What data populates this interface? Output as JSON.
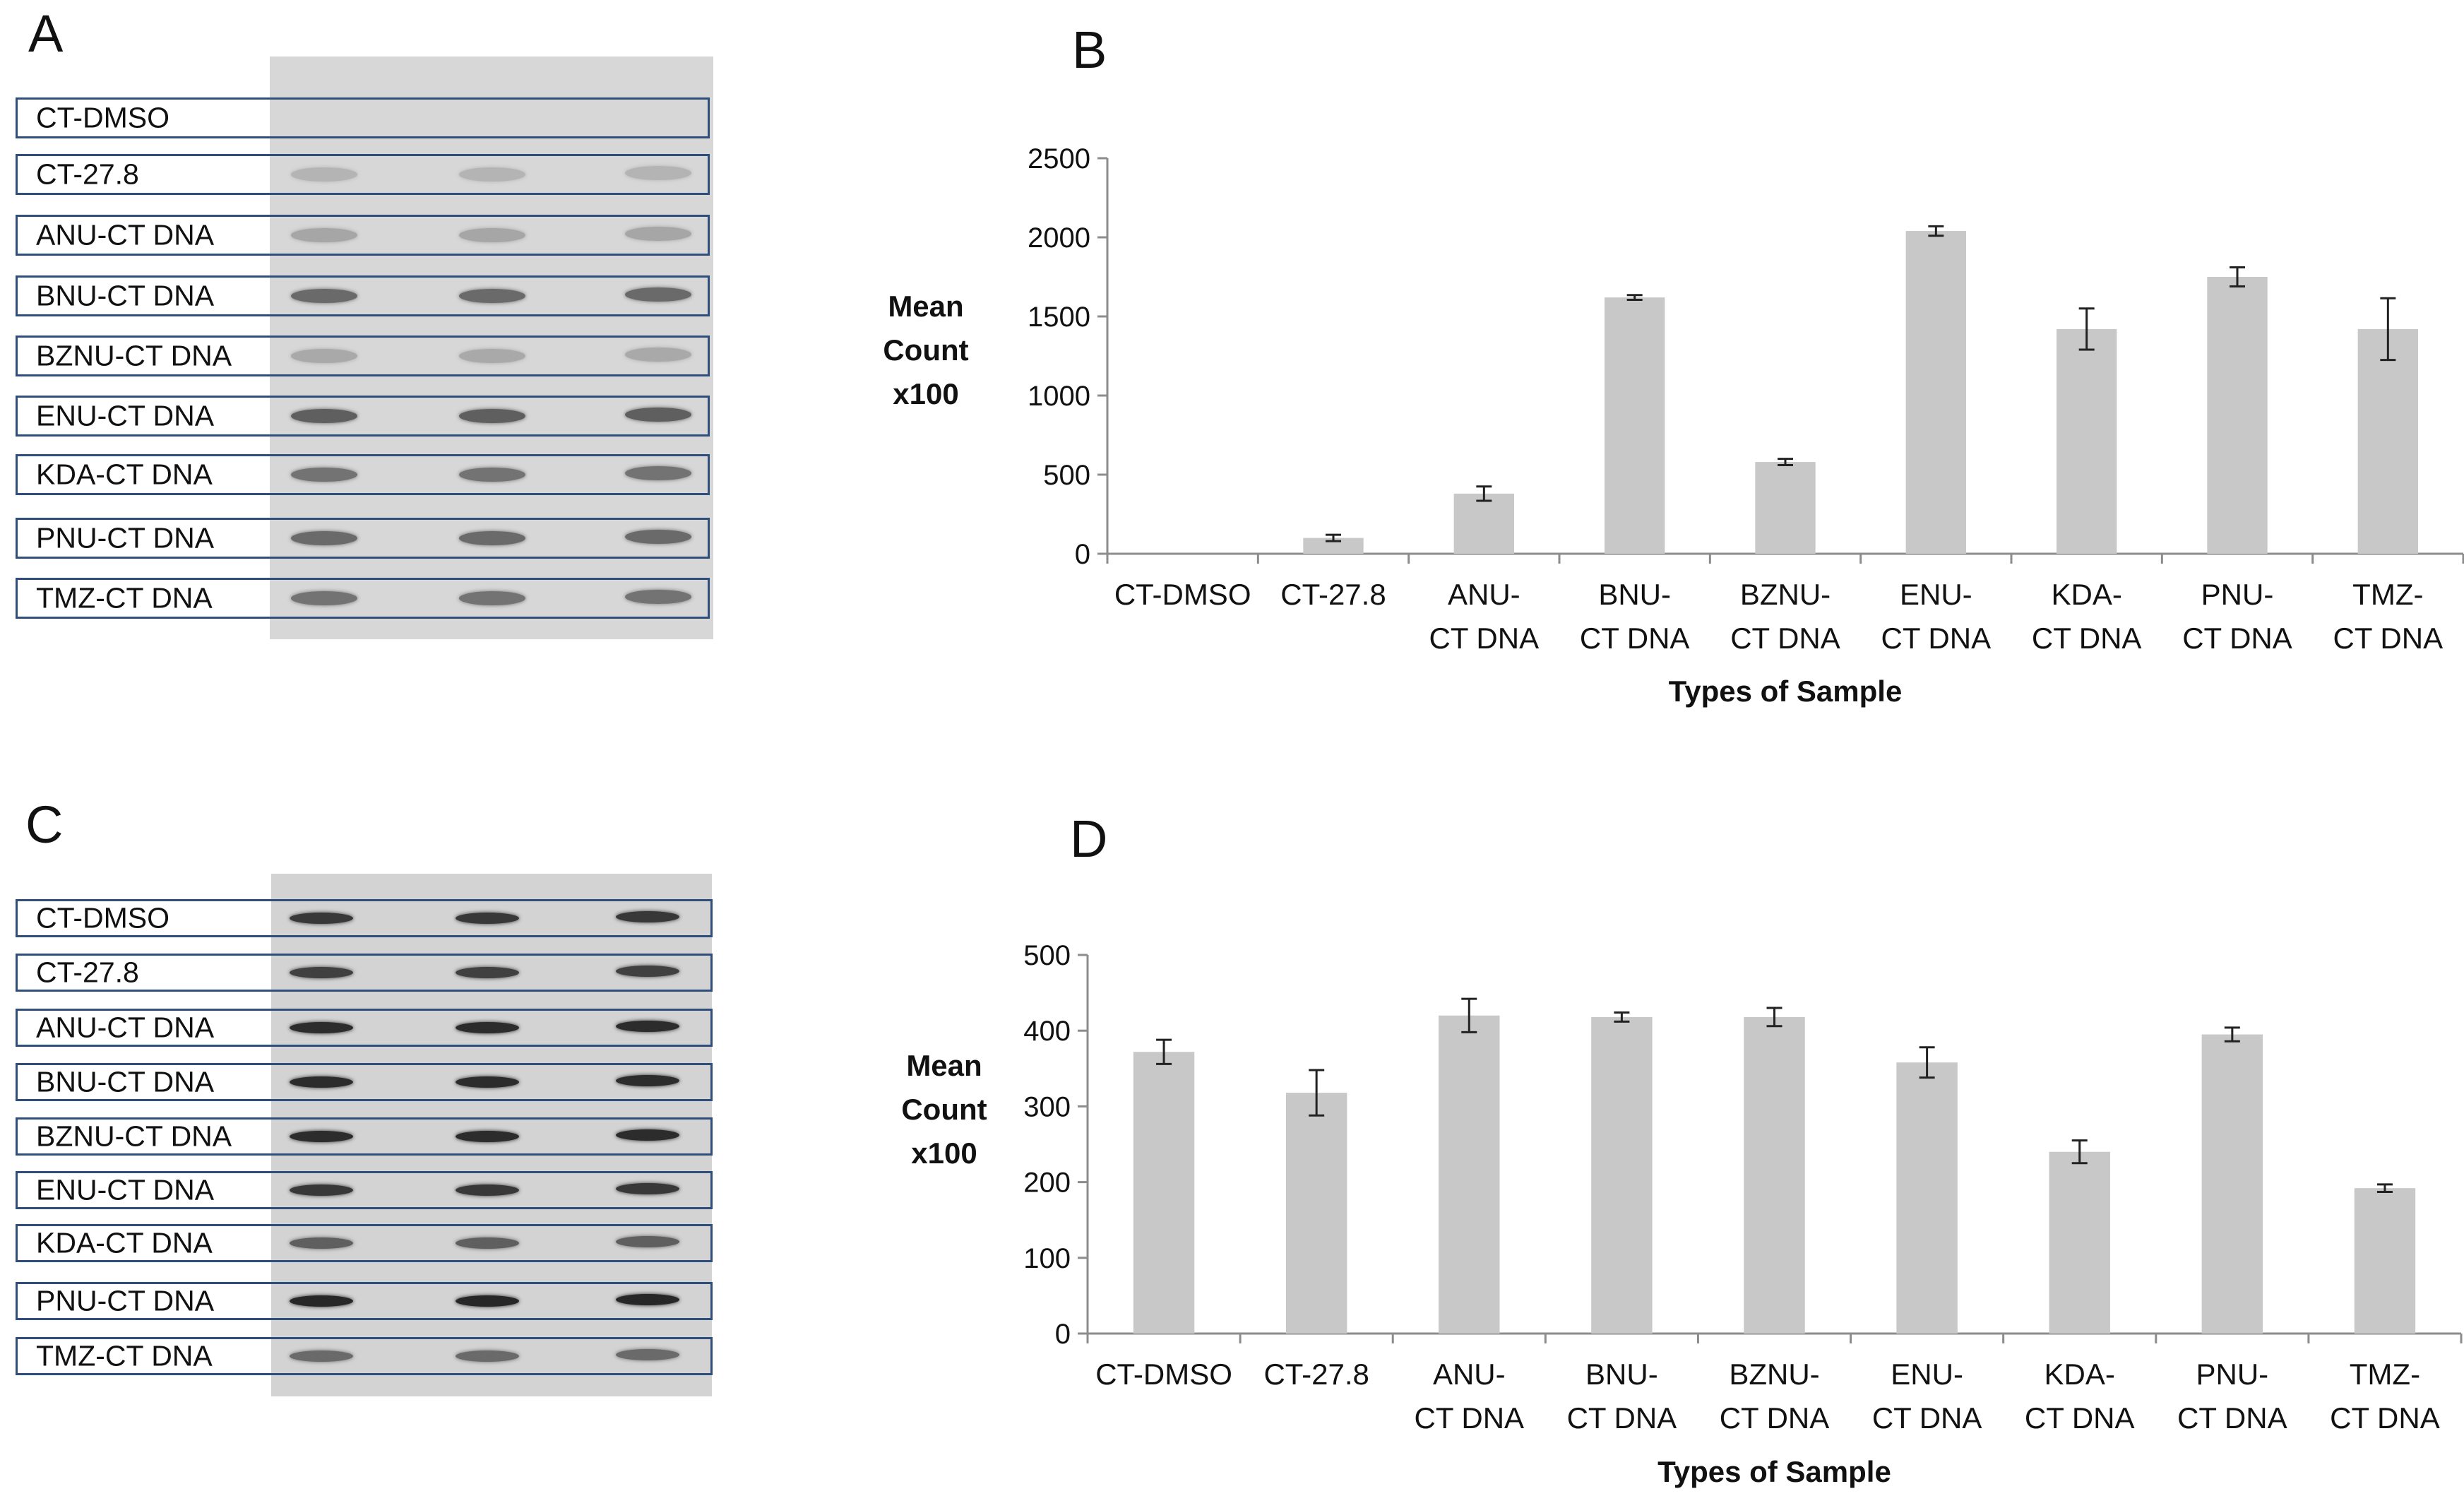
{
  "panels": {
    "a": {
      "letter": "A"
    },
    "b": {
      "letter": "B"
    },
    "c": {
      "letter": "C"
    },
    "d": {
      "letter": "D"
    }
  },
  "blot_a": {
    "lanes": [
      "CT-DMSO",
      "CT-27.8",
      "ANU-CT DNA",
      "BNU-CT DNA",
      "BZNU-CT DNA",
      "ENU-CT DNA",
      "KDA-CT DNA",
      "PNU-CT DNA",
      "TMZ-CT DNA"
    ],
    "band_intensity": [
      0.0,
      0.12,
      0.2,
      0.55,
      0.18,
      0.62,
      0.5,
      0.55,
      0.5
    ]
  },
  "blot_c": {
    "lanes": [
      "CT-DMSO",
      "CT-27.8",
      "ANU-CT DNA",
      "BNU-CT DNA",
      "BZNU-CT DNA",
      "ENU-CT DNA",
      "KDA-CT DNA",
      "PNU-CT DNA",
      "TMZ-CT DNA"
    ],
    "band_intensity": [
      0.85,
      0.8,
      0.92,
      0.92,
      0.92,
      0.85,
      0.62,
      0.95,
      0.55
    ]
  },
  "chart_data": [
    {
      "type": "bar",
      "panel": "B",
      "categories": [
        [
          "CT-DMSO"
        ],
        [
          "CT-27.8"
        ],
        [
          "ANU-",
          "CT DNA"
        ],
        [
          "BNU-",
          "CT DNA"
        ],
        [
          "BZNU-",
          "CT DNA"
        ],
        [
          "ENU-",
          "CT DNA"
        ],
        [
          "KDA-",
          "CT DNA"
        ],
        [
          "PNU-",
          "CT DNA"
        ],
        [
          "TMZ-",
          "CT DNA"
        ]
      ],
      "values": [
        0,
        100,
        380,
        1620,
        580,
        2040,
        1420,
        1750,
        1420
      ],
      "errors": [
        0,
        20,
        45,
        15,
        20,
        30,
        130,
        60,
        195
      ],
      "ylim": [
        0,
        2500
      ],
      "yticks": [
        0,
        500,
        1000,
        1500,
        2000,
        2500
      ],
      "ylabel": [
        "Mean",
        "Count",
        "x100"
      ],
      "xlabel": "Types of Sample",
      "bar_color": "#c8c8c8"
    },
    {
      "type": "bar",
      "panel": "D",
      "categories": [
        [
          "CT-DMSO"
        ],
        [
          "CT-27.8"
        ],
        [
          "ANU-",
          "CT DNA"
        ],
        [
          "BNU-",
          "CT DNA"
        ],
        [
          "BZNU-",
          "CT DNA"
        ],
        [
          "ENU-",
          "CT DNA"
        ],
        [
          "KDA-",
          "CT DNA"
        ],
        [
          "PNU-",
          "CT DNA"
        ],
        [
          "TMZ-",
          "CT DNA"
        ]
      ],
      "values": [
        372,
        318,
        420,
        418,
        418,
        358,
        240,
        395,
        192
      ],
      "errors": [
        16,
        30,
        22,
        6,
        12,
        20,
        15,
        9,
        5
      ],
      "ylim": [
        0,
        500
      ],
      "yticks": [
        0,
        100,
        200,
        300,
        400,
        500
      ],
      "ylabel": [
        "Mean",
        "Count",
        "x100"
      ],
      "xlabel": "Types of Sample",
      "bar_color": "#c8c8c8"
    }
  ]
}
